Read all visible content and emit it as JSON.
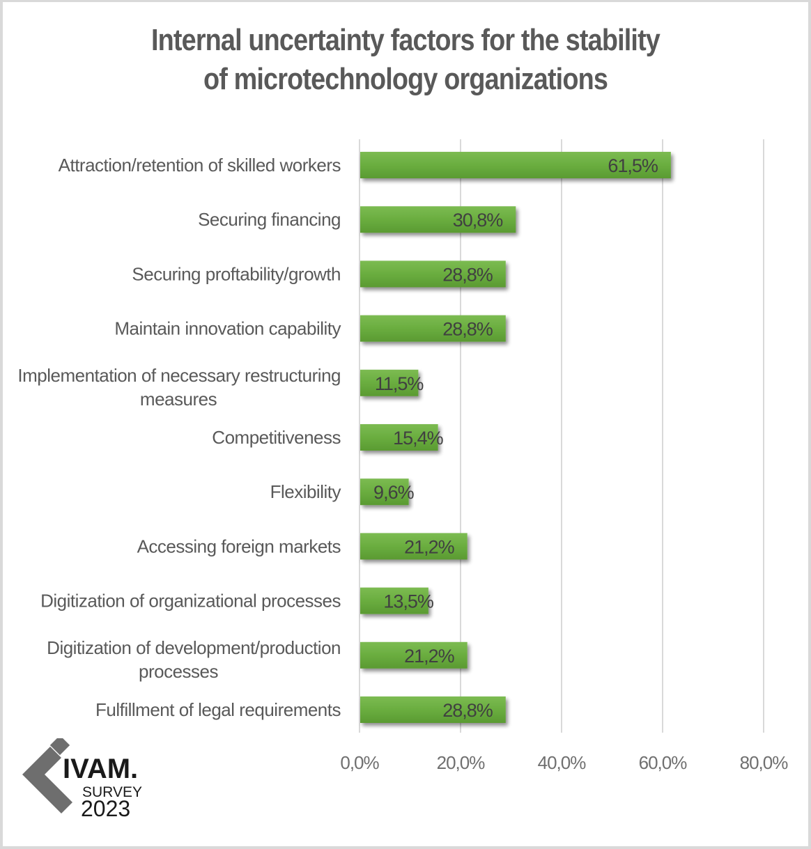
{
  "chart_data": {
    "type": "bar",
    "orientation": "horizontal",
    "title": "Internal uncertainty factors for the stability of microtechnology organizations",
    "title_lines": [
      "Internal uncertainty factors for the stability",
      "of microtechnology organizations"
    ],
    "categories": [
      "Attraction/retention of skilled workers",
      "Securing financing",
      "Securing proftability/growth",
      "Maintain innovation capability",
      "Implementation of necessary restructuring measures",
      "Competitiveness",
      "Flexibility",
      "Accessing foreign markets",
      "Digitization of organizational processes",
      "Digitization of development/production processes",
      "Fulfillment of legal requirements"
    ],
    "category_lines": [
      [
        "Attraction/retention of skilled workers"
      ],
      [
        "Securing financing"
      ],
      [
        "Securing proftability/growth"
      ],
      [
        "Maintain innovation capability"
      ],
      [
        "Implementation of necessary restructuring",
        "measures"
      ],
      [
        "Competitiveness"
      ],
      [
        "Flexibility"
      ],
      [
        "Accessing foreign markets"
      ],
      [
        "Digitization of organizational processes"
      ],
      [
        "Digitization of development/production",
        "processes"
      ],
      [
        "Fulfillment of legal requirements"
      ]
    ],
    "values": [
      61.5,
      30.8,
      28.8,
      28.8,
      11.5,
      15.4,
      9.6,
      21.2,
      13.5,
      21.2,
      28.8
    ],
    "value_labels": [
      "61,5%",
      "30,8%",
      "28,8%",
      "28,8%",
      "11,5%",
      "15,4%",
      "9,6%",
      "21,2%",
      "13,5%",
      "21,2%",
      "28,8%"
    ],
    "xlabel": "",
    "ylabel": "",
    "xlim": [
      0,
      80
    ],
    "xticks": [
      0,
      20,
      40,
      60,
      80
    ],
    "xtick_labels": [
      "0,0%",
      "20,0%",
      "40,0%",
      "60,0%",
      "80,0%"
    ],
    "grid": true,
    "legend": "none",
    "bar_color": "#6aad3f",
    "bar_color_light": "#7cbb52",
    "bar_color_dark": "#5a9a32",
    "grid_color": "#d9d9d9",
    "text_color": "#595959"
  },
  "logo": {
    "brand": "IVAM.",
    "line1": "SURVEY",
    "line2": "2023"
  }
}
